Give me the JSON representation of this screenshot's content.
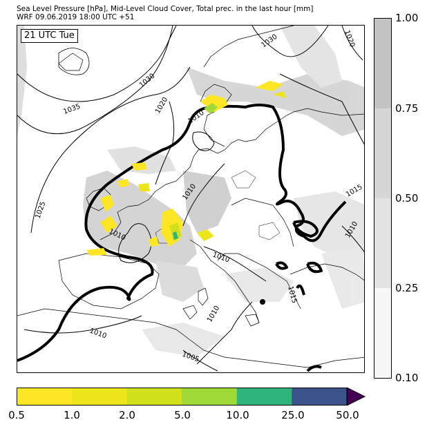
{
  "title_line1": "Sea Level Pressure [hPa], Mid-Level Cloud Cover, Total prec. in the last hour [mm]",
  "title_line2": "WRF 09.06.2019 18:00 UTC +51",
  "time_label": "21 UTC Tue",
  "cloud_colorbar": {
    "ticks": [
      "0.10",
      "0.25",
      "0.50",
      "0.75",
      "1.00"
    ],
    "colors": [
      "#f7f7f7",
      "#e3e3e3",
      "#d6d6d6",
      "#c4c4c4"
    ]
  },
  "precip_colorbar": {
    "ticks": [
      "0.5",
      "1.0",
      "2.0",
      "5.0",
      "10.0",
      "25.0",
      "50.0"
    ],
    "colors": [
      "#fde725",
      "#ede51b",
      "#d0e11c",
      "#a0da39",
      "#2fb47c",
      "#3b528b",
      "#440154"
    ]
  },
  "isobar_labels": [
    "1035",
    "1030",
    "1030",
    "1020",
    "1020",
    "1010",
    "1025",
    "1010",
    "1010",
    "1015",
    "1010",
    "1010",
    "1015",
    "1010",
    "1010",
    "1005"
  ]
}
